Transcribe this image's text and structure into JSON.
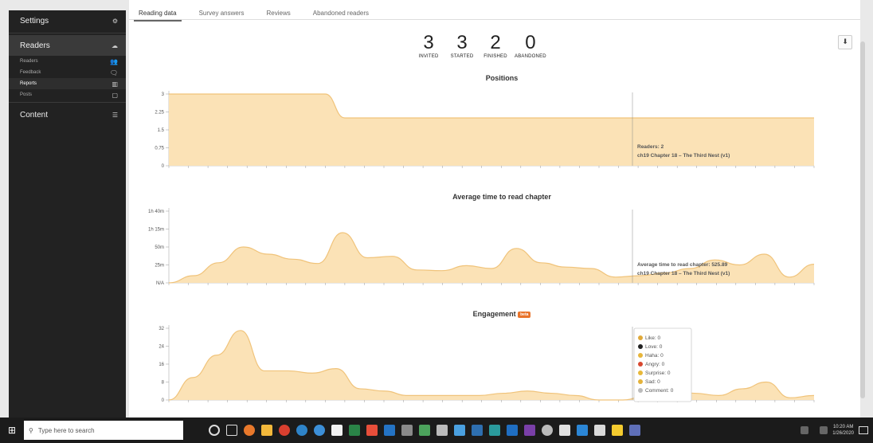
{
  "sidebar": {
    "settings": "Settings",
    "readers": "Readers",
    "sub_items": [
      "Readers",
      "Feedback",
      "Reports",
      "Posts"
    ],
    "content": "Content"
  },
  "tabs": [
    "Reading data",
    "Survey answers",
    "Reviews",
    "Abandoned readers"
  ],
  "stats": [
    {
      "value": "3",
      "label": "INVITED"
    },
    {
      "value": "3",
      "label": "STARTED"
    },
    {
      "value": "2",
      "label": "FINISHED"
    },
    {
      "value": "0",
      "label": "ABANDONED"
    }
  ],
  "colors": {
    "area_fill": "#fbe2b6",
    "area_stroke": "#f0c37a",
    "badge": "#e9742b"
  },
  "chart_data": [
    {
      "type": "area",
      "title": "Positions",
      "yticks": [
        "0",
        "0.75",
        "1.5",
        "2.25",
        "3"
      ],
      "ylim": [
        0,
        3
      ],
      "x": [
        0,
        1,
        2,
        3,
        4,
        5,
        6,
        7,
        8,
        9,
        10,
        11,
        12,
        13,
        14,
        15,
        16,
        17,
        18,
        19,
        20,
        21,
        22,
        23,
        24,
        25,
        26,
        27,
        28,
        29,
        30,
        31,
        32,
        33
      ],
      "values": [
        3,
        3,
        3,
        3,
        3,
        3,
        3,
        3,
        3,
        2,
        2,
        2,
        2,
        2,
        2,
        2,
        2,
        2,
        2,
        2,
        2,
        2,
        2,
        2,
        2,
        2,
        2,
        2,
        2,
        2,
        2,
        2,
        2,
        2
      ],
      "annotation": {
        "line1": "Readers: 2",
        "line2": "ch19  Chapter 18 – The Third Nest (v1)"
      }
    },
    {
      "type": "area",
      "title": "Average time to read chapter",
      "yticks": [
        "N/A",
        "25m",
        "50m",
        "1h 15m",
        "1h 40m"
      ],
      "ylim": [
        0,
        100
      ],
      "values": [
        0,
        10,
        28,
        50,
        40,
        33,
        27,
        70,
        35,
        37,
        18,
        17,
        24,
        20,
        48,
        28,
        22,
        20,
        8,
        10,
        14,
        20,
        32,
        25,
        40,
        8,
        26
      ],
      "annotation": {
        "line1": "Average time to read chapter: 525.89",
        "line2": "ch19  Chapter 18 – The Third Nest (v1)"
      }
    },
    {
      "type": "area",
      "title": "Engagement",
      "badge": "beta",
      "yticks": [
        "0",
        "8",
        "16",
        "24",
        "32"
      ],
      "ylim": [
        0,
        32
      ],
      "values": [
        0,
        10,
        20,
        31,
        13,
        13,
        12,
        14,
        5,
        4,
        2,
        2,
        2,
        2,
        3,
        4,
        3,
        2,
        0,
        0,
        2,
        5,
        3,
        2,
        5,
        8,
        1,
        2
      ],
      "tooltip": [
        {
          "label": "Like",
          "value": "0"
        },
        {
          "label": "Love",
          "value": "0"
        },
        {
          "label": "Haha",
          "value": "0"
        },
        {
          "label": "Angry",
          "value": "0"
        },
        {
          "label": "Surprise",
          "value": "0"
        },
        {
          "label": "Sad",
          "value": "0"
        },
        {
          "label": "Comment",
          "value": "0"
        }
      ]
    }
  ],
  "taskbar": {
    "search_placeholder": "Type here to search",
    "time": "10:20 AM",
    "date": "1/26/2020"
  }
}
